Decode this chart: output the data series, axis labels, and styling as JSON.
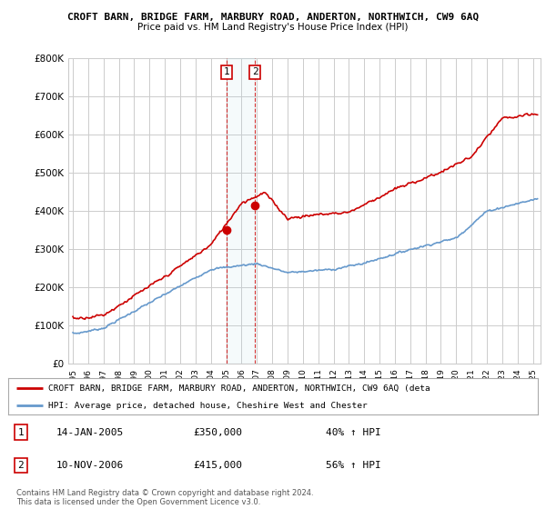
{
  "title1": "CROFT BARN, BRIDGE FARM, MARBURY ROAD, ANDERTON, NORTHWICH, CW9 6AQ",
  "title2": "Price paid vs. HM Land Registry's House Price Index (HPI)",
  "ylabel_ticks": [
    "£0",
    "£100K",
    "£200K",
    "£300K",
    "£400K",
    "£500K",
    "£600K",
    "£700K",
    "£800K"
  ],
  "ytick_values": [
    0,
    100000,
    200000,
    300000,
    400000,
    500000,
    600000,
    700000,
    800000
  ],
  "ylim": [
    0,
    800000
  ],
  "xlim_start": 1994.7,
  "xlim_end": 2025.5,
  "sale1_x": 2005.04,
  "sale1_y": 350000,
  "sale2_x": 2006.87,
  "sale2_y": 415000,
  "vline_x1": 2005.04,
  "vline_x2": 2006.87,
  "red_color": "#cc0000",
  "blue_color": "#6699cc",
  "background_color": "#ffffff",
  "grid_color": "#cccccc",
  "legend_label_red": "CROFT BARN, BRIDGE FARM, MARBURY ROAD, ANDERTON, NORTHWICH, CW9 6AQ (deta",
  "legend_label_blue": "HPI: Average price, detached house, Cheshire West and Chester",
  "annotation1_label": "1",
  "annotation2_label": "2",
  "table_row1": [
    "1",
    "14-JAN-2005",
    "£350,000",
    "40% ↑ HPI"
  ],
  "table_row2": [
    "2",
    "10-NOV-2006",
    "£415,000",
    "56% ↑ HPI"
  ],
  "footnote1": "Contains HM Land Registry data © Crown copyright and database right 2024.",
  "footnote2": "This data is licensed under the Open Government Licence v3.0."
}
